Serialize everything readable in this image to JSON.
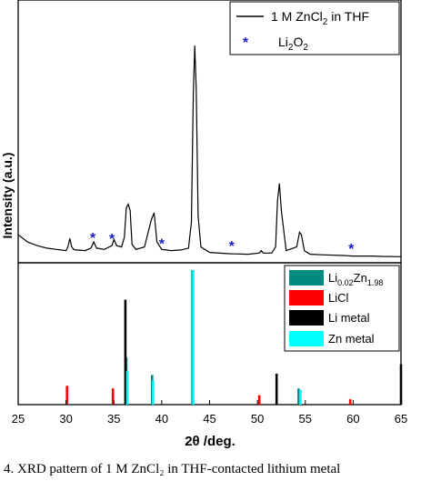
{
  "chart_data": {
    "type": "line",
    "xlabel": "2θ /deg.",
    "ylabel": "Intensity (a.u.)",
    "xlim": [
      25,
      65
    ],
    "xticks": [
      "25",
      "30",
      "35",
      "40",
      "45",
      "50",
      "55",
      "60",
      "65"
    ],
    "grid": false,
    "top_panel": {
      "legend_position": "top-right",
      "series": [
        {
          "name": "1 M ZnCl2 in THF",
          "legend_label": {
            "main": "1 M ZnCl",
            "sub": "2",
            "suffix": " in THF"
          },
          "color": "#000000",
          "x": [
            25,
            26,
            27,
            28,
            29,
            30,
            30.2,
            30.4,
            30.6,
            30.8,
            31,
            32,
            32.6,
            32.9,
            33.2,
            34,
            34.8,
            35,
            35.3,
            35.8,
            36.1,
            36.3,
            36.5,
            36.7,
            36.9,
            37.3,
            38.2,
            38.9,
            39.2,
            39.5,
            40,
            41,
            42,
            42.8,
            43.1,
            43.3,
            43.45,
            43.6,
            43.8,
            44.1,
            45,
            47,
            49,
            50.2,
            50.4,
            50.6,
            51.5,
            51.9,
            52.1,
            52.3,
            52.5,
            53,
            54.1,
            54.4,
            54.6,
            54.9,
            55.5,
            57,
            59,
            60,
            62,
            63,
            65
          ],
          "y": [
            20,
            14,
            11,
            9,
            8,
            7,
            10,
            17,
            10,
            8,
            7.5,
            7,
            9,
            14,
            9,
            8,
            11,
            16,
            11,
            10,
            18,
            42,
            45,
            40,
            12,
            8,
            10,
            32,
            38,
            14,
            8,
            7,
            7.5,
            9,
            30,
            135,
            175,
            140,
            35,
            10,
            5.5,
            4.5,
            4,
            5,
            7,
            5,
            5,
            10,
            48,
            62,
            40,
            7,
            10,
            22,
            20,
            7,
            4,
            3.5,
            3,
            2.5,
            2.5,
            2.2,
            2
          ]
        }
      ],
      "markers": {
        "name": "Li2O2",
        "legend_label": {
          "main": "Li",
          "sub": "2",
          "mid": "O",
          "sub2": "2"
        },
        "symbol": "*",
        "color": "#1c1cc8",
        "x": [
          32.8,
          34.8,
          40,
          47.3,
          59.8
        ],
        "y": [
          18,
          17,
          13,
          11,
          9
        ]
      },
      "ylim": [
        0,
        190
      ]
    },
    "bottom_panel": {
      "legend_position": "top-right",
      "ylim": [
        0,
        100
      ],
      "series": [
        {
          "name": "Li0.02Zn1.98",
          "legend_label": {
            "main": "Li",
            "sub": "0.02",
            "mid": "Zn",
            "sub2": "1.98"
          },
          "color": "#008b80",
          "x": [
            36.3,
            39.0,
            43.2,
            54.3
          ],
          "values": [
            35,
            22,
            100,
            12
          ]
        },
        {
          "name": "LiCl",
          "legend_label": {
            "main": "LiCl"
          },
          "color": "#ff0000",
          "x": [
            30.1,
            34.9,
            50.2,
            59.7
          ],
          "values": [
            14,
            12,
            7,
            4
          ]
        },
        {
          "name": "Li metal",
          "legend_label": {
            "main": "Li metal"
          },
          "color": "#000000",
          "x": [
            36.2,
            52.0,
            65.0
          ],
          "values": [
            78,
            23,
            30
          ]
        },
        {
          "name": "Zn metal",
          "legend_label": {
            "main": "Zn metal"
          },
          "color": "#00ffff",
          "x": [
            36.4,
            39.1,
            43.3,
            54.5
          ],
          "values": [
            25,
            18,
            100,
            11
          ]
        }
      ]
    }
  },
  "caption": "4. XRD pattern of 1 M ZnCl₂ in THF-contacted lithium metal"
}
